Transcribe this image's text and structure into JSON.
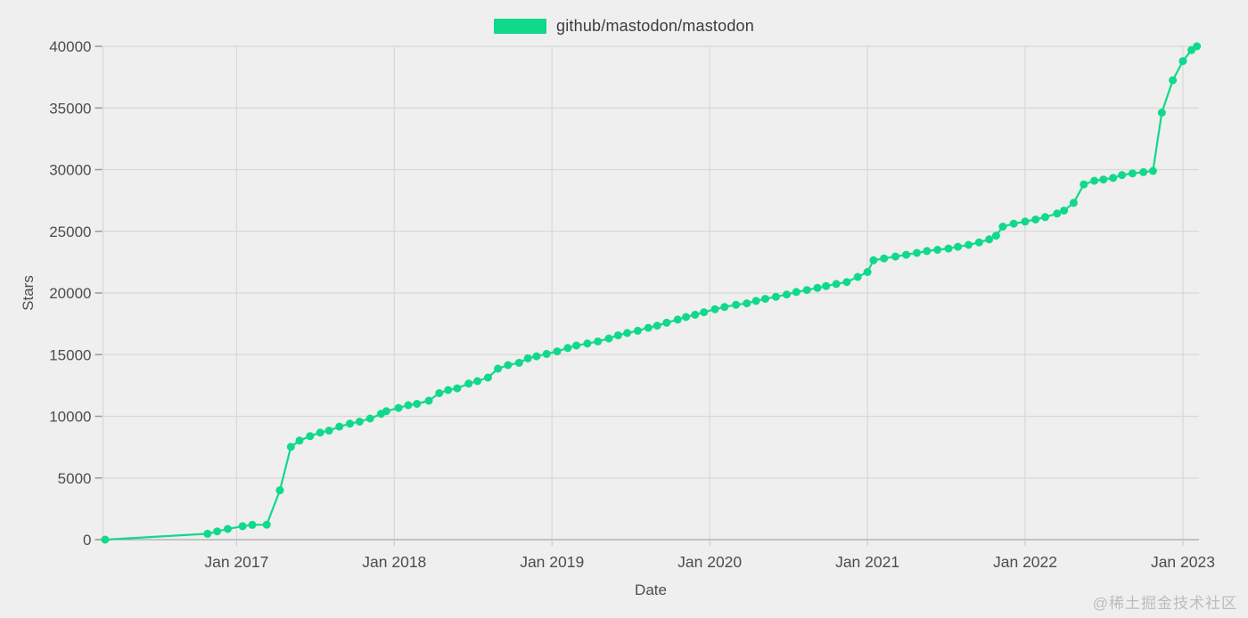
{
  "page": {
    "watermark_text": "@稀土掘金技术社区"
  },
  "legend": {
    "label": "github/mastodon/mastodon",
    "color": "#10d98c"
  },
  "colors": {
    "background": "#efefef",
    "gridline": "#d8d8d8",
    "axis_line": "#a8a8a8",
    "y_tick_mark": "#999999",
    "x_tick_mark": "#cccccc",
    "tick_text": "#4d4d4d",
    "series_green": "#10d98c"
  },
  "chart_data": {
    "type": "line",
    "title": "",
    "xlabel": "Date",
    "ylabel": "Stars",
    "grid": true,
    "legend_position": "top-center",
    "x_axis": {
      "tick_years": [
        2017,
        2018,
        2019,
        2020,
        2021,
        2022,
        2023
      ],
      "tick_label_prefix": "Jan ",
      "range_decimal_years": [
        2016.153,
        2023.102
      ]
    },
    "y_axis": {
      "min": 0,
      "max": 40000,
      "tick_step": 5000
    },
    "series": [
      {
        "name": "github/mastodon/mastodon",
        "color": "#10d98c",
        "marker": "circle",
        "points": [
          [
            "2016-03-01",
            0
          ],
          [
            "2016-10-25",
            480
          ],
          [
            "2016-11-17",
            670
          ],
          [
            "2016-12-11",
            870
          ],
          [
            "2017-01-15",
            1090
          ],
          [
            "2017-02-07",
            1200
          ],
          [
            "2017-03-10",
            1210
          ],
          [
            "2017-04-10",
            4000
          ],
          [
            "2017-05-05",
            7520
          ],
          [
            "2017-05-25",
            8030
          ],
          [
            "2017-06-19",
            8390
          ],
          [
            "2017-07-12",
            8680
          ],
          [
            "2017-08-02",
            8840
          ],
          [
            "2017-08-26",
            9160
          ],
          [
            "2017-09-20",
            9400
          ],
          [
            "2017-10-12",
            9570
          ],
          [
            "2017-11-06",
            9820
          ],
          [
            "2017-12-01",
            10200
          ],
          [
            "2017-12-13",
            10420
          ],
          [
            "2018-01-11",
            10680
          ],
          [
            "2018-02-03",
            10900
          ],
          [
            "2018-02-23",
            11010
          ],
          [
            "2018-03-20",
            11260
          ],
          [
            "2018-04-14",
            11880
          ],
          [
            "2018-05-04",
            12130
          ],
          [
            "2018-05-25",
            12270
          ],
          [
            "2018-06-21",
            12650
          ],
          [
            "2018-07-11",
            12850
          ],
          [
            "2018-08-05",
            13140
          ],
          [
            "2018-08-28",
            13860
          ],
          [
            "2018-09-21",
            14150
          ],
          [
            "2018-10-16",
            14340
          ],
          [
            "2018-11-06",
            14700
          ],
          [
            "2018-11-26",
            14870
          ],
          [
            "2018-12-19",
            15060
          ],
          [
            "2019-01-13",
            15260
          ],
          [
            "2019-02-07",
            15540
          ],
          [
            "2019-02-27",
            15740
          ],
          [
            "2019-03-22",
            15900
          ],
          [
            "2019-04-16",
            16070
          ],
          [
            "2019-05-11",
            16310
          ],
          [
            "2019-06-02",
            16560
          ],
          [
            "2019-06-23",
            16750
          ],
          [
            "2019-07-17",
            16940
          ],
          [
            "2019-08-11",
            17180
          ],
          [
            "2019-09-01",
            17350
          ],
          [
            "2019-09-23",
            17590
          ],
          [
            "2019-10-18",
            17840
          ],
          [
            "2019-11-07",
            18050
          ],
          [
            "2019-11-28",
            18240
          ],
          [
            "2019-12-18",
            18440
          ],
          [
            "2020-01-13",
            18680
          ],
          [
            "2020-02-05",
            18870
          ],
          [
            "2020-03-01",
            19040
          ],
          [
            "2020-03-26",
            19160
          ],
          [
            "2020-04-17",
            19360
          ],
          [
            "2020-05-08",
            19520
          ],
          [
            "2020-06-02",
            19690
          ],
          [
            "2020-06-27",
            19880
          ],
          [
            "2020-07-19",
            20080
          ],
          [
            "2020-08-13",
            20240
          ],
          [
            "2020-09-07",
            20410
          ],
          [
            "2020-09-27",
            20560
          ],
          [
            "2020-10-20",
            20730
          ],
          [
            "2020-11-14",
            20890
          ],
          [
            "2020-12-09",
            21300
          ],
          [
            "2021-01-01",
            21700
          ],
          [
            "2021-01-15",
            22650
          ],
          [
            "2021-02-09",
            22800
          ],
          [
            "2021-03-05",
            22950
          ],
          [
            "2021-03-30",
            23100
          ],
          [
            "2021-04-24",
            23250
          ],
          [
            "2021-05-17",
            23400
          ],
          [
            "2021-06-11",
            23500
          ],
          [
            "2021-07-06",
            23600
          ],
          [
            "2021-07-28",
            23750
          ],
          [
            "2021-08-22",
            23900
          ],
          [
            "2021-09-16",
            24100
          ],
          [
            "2021-10-09",
            24350
          ],
          [
            "2021-10-25",
            24640
          ],
          [
            "2021-11-10",
            25380
          ],
          [
            "2021-12-05",
            25620
          ],
          [
            "2022-01-01",
            25790
          ],
          [
            "2022-01-25",
            25960
          ],
          [
            "2022-02-17",
            26150
          ],
          [
            "2022-03-14",
            26440
          ],
          [
            "2022-03-30",
            26680
          ],
          [
            "2022-04-22",
            27310
          ],
          [
            "2022-05-15",
            28800
          ],
          [
            "2022-06-09",
            29100
          ],
          [
            "2022-06-30",
            29200
          ],
          [
            "2022-07-22",
            29330
          ],
          [
            "2022-08-12",
            29560
          ],
          [
            "2022-09-06",
            29700
          ],
          [
            "2022-10-01",
            29800
          ],
          [
            "2022-10-23",
            29900
          ],
          [
            "2022-11-13",
            34620
          ],
          [
            "2022-12-08",
            37250
          ],
          [
            "2023-01-01",
            38800
          ],
          [
            "2023-01-21",
            39700
          ],
          [
            "2023-02-03",
            40000
          ]
        ]
      }
    ]
  }
}
